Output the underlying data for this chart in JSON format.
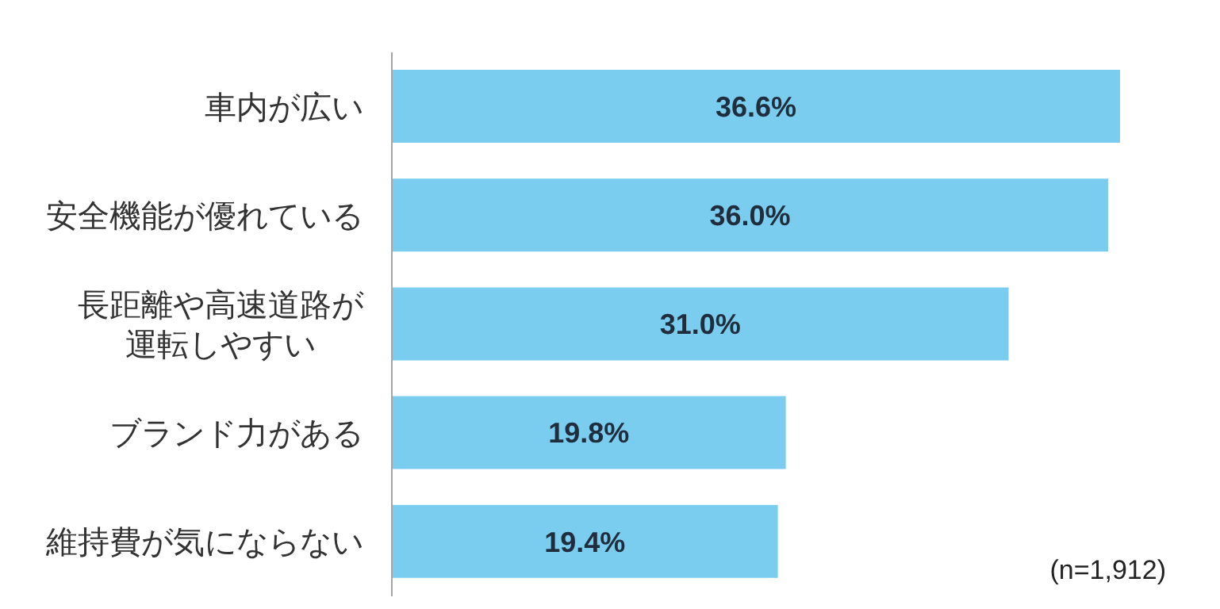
{
  "chart_data": {
    "type": "bar",
    "orientation": "horizontal",
    "categories": [
      "車内が広い",
      "安全機能が優れている",
      "長距離や高速道路が運転しやすい",
      "ブランド力がある",
      "維持費が気にならない"
    ],
    "values": [
      36.6,
      36.0,
      31.0,
      19.8,
      19.4
    ],
    "value_labels": [
      "36.6%",
      "36.0%",
      "31.0%",
      "19.8%",
      "19.4%"
    ],
    "color": "#7bcdef",
    "annotations": [
      "(n=1,912)"
    ]
  }
}
